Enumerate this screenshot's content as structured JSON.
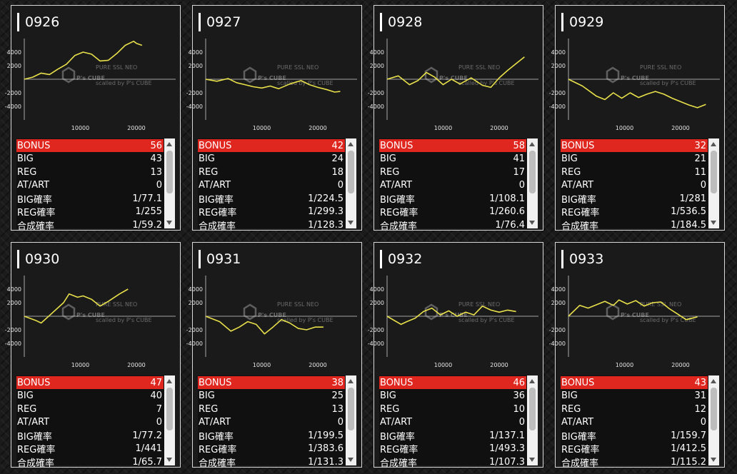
{
  "colors": {
    "accent": "#e0271f",
    "line": "#e8e04a",
    "border": "#d8d8d8"
  },
  "watermark": {
    "brand": "P's CUBE",
    "small_top": "PURE SSL NEO",
    "small_bottom": "scalled by P's CUBE"
  },
  "row_labels": [
    "BONUS",
    "BIG",
    "REG",
    "AT/ART",
    "BIG確率",
    "REG確率",
    "合成確率"
  ],
  "chart_axis": {
    "y_ticks": [
      4000,
      2000,
      -2000,
      -4000
    ],
    "x_ticks": [
      10000,
      20000
    ],
    "xlim": [
      0,
      27000
    ],
    "ylim": [
      -6000,
      6000
    ]
  },
  "machines": [
    {
      "id": "0926",
      "values": [
        "56",
        "43",
        "13",
        "0",
        "1/77.1",
        "1/255",
        "1/59.2"
      ],
      "chart_data": {
        "type": "line",
        "x": [
          0,
          1500,
          3000,
          4500,
          6000,
          7500,
          9000,
          10500,
          12000,
          13500,
          15000,
          16500,
          18000,
          19500,
          20000,
          21000
        ],
        "y": [
          0,
          300,
          900,
          700,
          1500,
          2200,
          3500,
          4000,
          3700,
          2700,
          2800,
          3800,
          5000,
          5600,
          5300,
          5000
        ]
      }
    },
    {
      "id": "0927",
      "values": [
        "42",
        "24",
        "18",
        "0",
        "1/224.5",
        "1/299.3",
        "1/128.3"
      ],
      "chart_data": {
        "type": "line",
        "x": [
          0,
          2000,
          4000,
          5500,
          7000,
          8500,
          10000,
          11500,
          13000,
          15000,
          17000,
          18500,
          20000,
          21500,
          23000,
          24000
        ],
        "y": [
          0,
          -300,
          100,
          -500,
          -800,
          -1100,
          -1300,
          -1000,
          -1400,
          -700,
          -200,
          -800,
          -1200,
          -1500,
          -1900,
          -1800
        ]
      }
    },
    {
      "id": "0928",
      "values": [
        "58",
        "41",
        "17",
        "0",
        "1/108.1",
        "1/260.6",
        "1/76.4"
      ],
      "chart_data": {
        "type": "line",
        "x": [
          0,
          2000,
          4000,
          5500,
          7000,
          8500,
          10000,
          11500,
          13000,
          15000,
          17000,
          18500,
          20000,
          21500,
          23000,
          24500
        ],
        "y": [
          0,
          500,
          -800,
          -200,
          1000,
          300,
          -800,
          0,
          -700,
          200,
          -900,
          -1200,
          200,
          1300,
          2300,
          3300
        ]
      }
    },
    {
      "id": "0929",
      "values": [
        "32",
        "21",
        "11",
        "0",
        "1/281",
        "1/536.5",
        "1/184.5"
      ],
      "chart_data": {
        "type": "line",
        "x": [
          0,
          2500,
          5000,
          6500,
          8000,
          9500,
          11000,
          12500,
          14000,
          15500,
          17000,
          18500,
          20000,
          21500,
          23000,
          24500
        ],
        "y": [
          0,
          -1000,
          -2500,
          -3000,
          -2000,
          -2800,
          -2000,
          -2700,
          -2200,
          -1800,
          -2200,
          -2800,
          -3300,
          -3800,
          -4200,
          -3700
        ]
      }
    },
    {
      "id": "0930",
      "values": [
        "47",
        "40",
        "7",
        "0",
        "1/77.2",
        "1/441",
        "1/65.7"
      ],
      "chart_data": {
        "type": "line",
        "x": [
          0,
          2000,
          3000,
          5000,
          7000,
          8000,
          9500,
          10500,
          12000,
          13500,
          15000,
          17000,
          18500
        ],
        "y": [
          0,
          -600,
          -1000,
          500,
          2000,
          3300,
          2800,
          3000,
          2500,
          1500,
          2200,
          3300,
          4000
        ]
      }
    },
    {
      "id": "0931",
      "values": [
        "38",
        "25",
        "13",
        "0",
        "1/199.5",
        "1/383.6",
        "1/131.3"
      ],
      "chart_data": {
        "type": "line",
        "x": [
          0,
          2500,
          4500,
          6000,
          7500,
          9000,
          10500,
          12000,
          13500,
          15000,
          16500,
          18000,
          19500,
          21000
        ],
        "y": [
          0,
          -800,
          -2200,
          -1600,
          -800,
          -1200,
          -2600,
          -1600,
          -500,
          -1000,
          -1800,
          -2000,
          -1600,
          -1600
        ]
      }
    },
    {
      "id": "0932",
      "values": [
        "46",
        "36",
        "10",
        "0",
        "1/137.1",
        "1/493.3",
        "1/107.3"
      ],
      "chart_data": {
        "type": "line",
        "x": [
          0,
          2500,
          3500,
          5000,
          6500,
          8000,
          9500,
          11000,
          12500,
          14000,
          15500,
          17000,
          18500,
          20000,
          21500,
          23000
        ],
        "y": [
          0,
          -1200,
          -800,
          -300,
          700,
          1200,
          200,
          800,
          0,
          600,
          200,
          1500,
          900,
          600,
          900,
          700
        ]
      }
    },
    {
      "id": "0933",
      "values": [
        "43",
        "31",
        "12",
        "0",
        "1/159.7",
        "1/412.5",
        "1/115.2"
      ],
      "chart_data": {
        "type": "line",
        "x": [
          0,
          2000,
          3500,
          5000,
          6500,
          8000,
          9000,
          10500,
          12000,
          13500,
          15000,
          16500,
          18000,
          19500,
          21000,
          22000,
          23000
        ],
        "y": [
          0,
          1600,
          1200,
          1700,
          2200,
          1600,
          2400,
          1800,
          2300,
          1500,
          2000,
          2100,
          1100,
          300,
          -500,
          -300,
          -100
        ]
      }
    }
  ]
}
